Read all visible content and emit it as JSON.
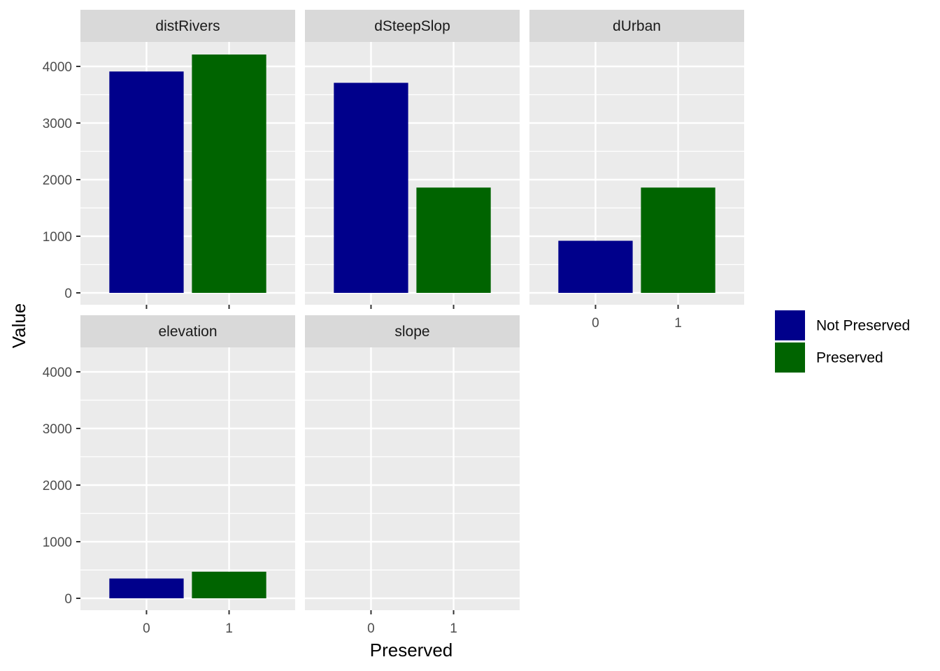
{
  "chart_data": {
    "type": "bar",
    "facet_layout": "3 columns, 2 rows",
    "xlabel": "Preserved",
    "ylabel": "Value",
    "categories": [
      "0",
      "1"
    ],
    "ylim": [
      0,
      4200
    ],
    "yticks": [
      "0",
      "1000",
      "2000",
      "3000",
      "4000"
    ],
    "grid": true,
    "legend": {
      "placement": "right",
      "entries": [
        {
          "name": "Not Preserved",
          "color": "#00008B"
        },
        {
          "name": "Preserved",
          "color": "#006400"
        }
      ]
    },
    "panels": [
      {
        "title": "distRivers",
        "values": [
          3910,
          4210
        ]
      },
      {
        "title": "dSteepSlop",
        "values": [
          3710,
          1860
        ]
      },
      {
        "title": "dUrban",
        "values": [
          920,
          1860
        ]
      },
      {
        "title": "elevation",
        "values": [
          350,
          470
        ]
      },
      {
        "title": "slope",
        "values": [
          0,
          0
        ]
      }
    ]
  },
  "colors": {
    "panel_background": "#EBEBEB",
    "strip_background": "#D9D9D9",
    "grid": "#FFFFFF",
    "not_preserved": "#00008B",
    "preserved": "#006400"
  }
}
